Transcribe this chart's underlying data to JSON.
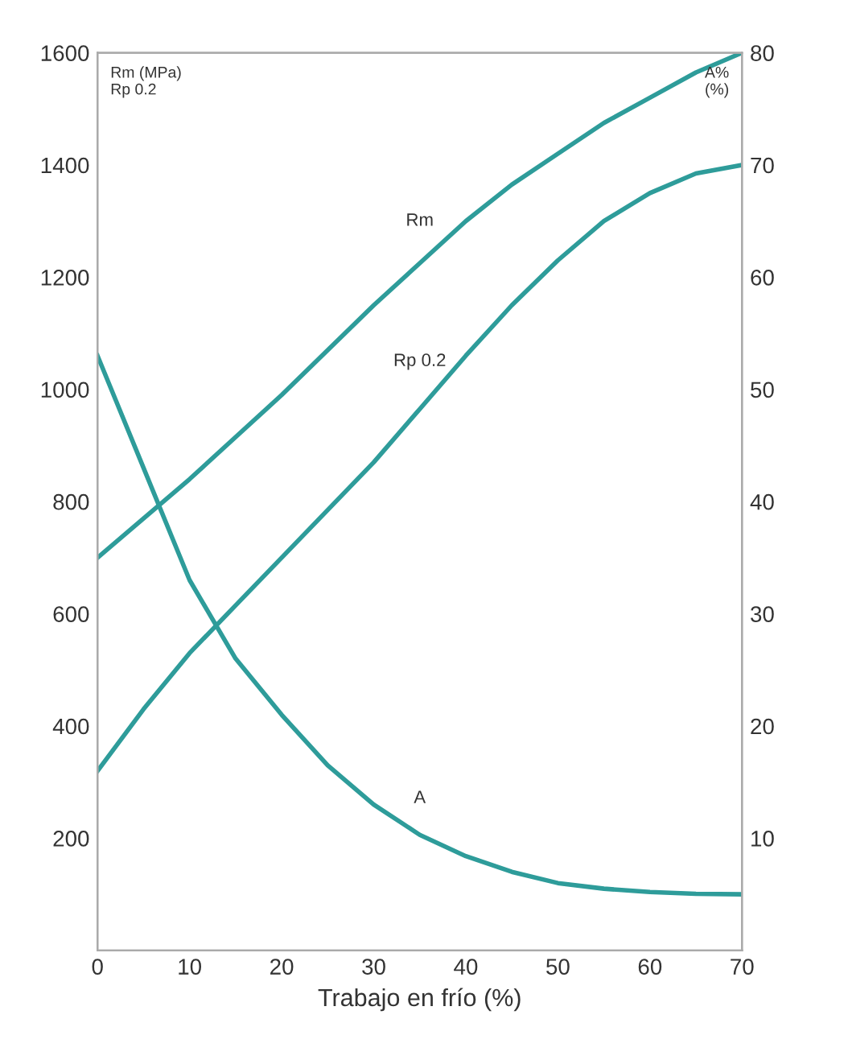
{
  "chart_data": {
    "type": "line",
    "xlabel": "Trabajo en frío (%)",
    "ylabel": "Rm (MPa)\nRp 0.2",
    "y2label": "A%\n(%)",
    "x": [
      0,
      5,
      10,
      15,
      20,
      25,
      30,
      35,
      40,
      45,
      50,
      55,
      60,
      65,
      70
    ],
    "series": [
      {
        "name": "Rm",
        "color": "#2e9c9a",
        "values": [
          700,
          770,
          840,
          915,
          990,
          1070,
          1150,
          1225,
          1300,
          1365,
          1420,
          1475,
          1520,
          1565,
          1600
        ]
      },
      {
        "name": "Rp 0.2",
        "color": "#2e9c9a",
        "values": [
          320,
          430,
          530,
          615,
          700,
          785,
          870,
          965,
          1060,
          1150,
          1230,
          1300,
          1350,
          1385,
          1400
        ]
      },
      {
        "name": "A",
        "color": "#2e9c9a",
        "axis": "y2",
        "values": [
          53,
          43,
          33,
          26,
          21,
          16.5,
          13,
          10.3,
          8.4,
          7,
          6,
          5.5,
          5.2,
          5.05,
          5
        ]
      }
    ],
    "xlim": [
      0,
      70
    ],
    "xticks": [
      0,
      10,
      20,
      30,
      40,
      50,
      60,
      70
    ],
    "ylim": [
      0,
      1600
    ],
    "yticks": [
      200,
      400,
      600,
      800,
      1000,
      1200,
      1400,
      1600
    ],
    "y2lim": [
      0,
      80
    ],
    "y2ticks": [
      10,
      20,
      30,
      40,
      50,
      60,
      70,
      80
    ],
    "grid": false,
    "legend": false,
    "marker": "none",
    "line_style": "solid"
  }
}
